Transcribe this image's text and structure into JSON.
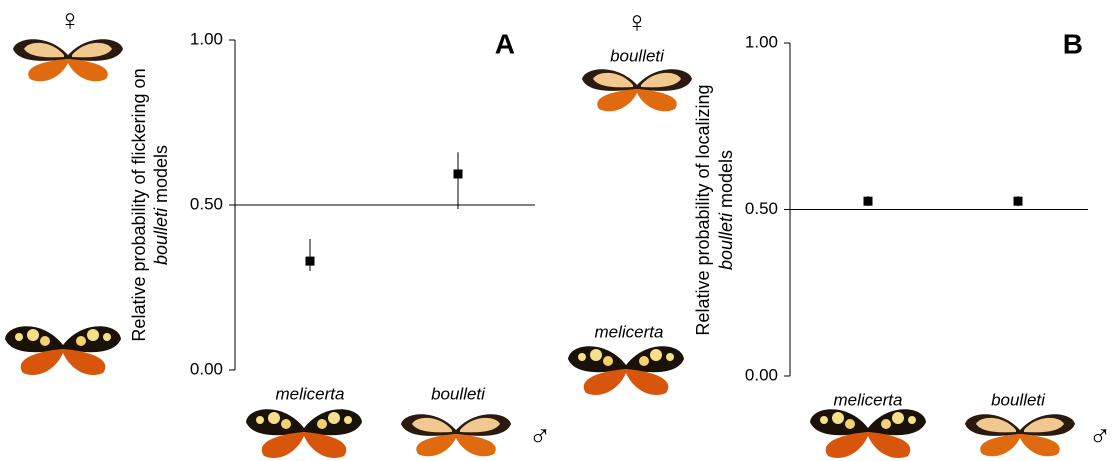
{
  "chart_data": [
    {
      "type": "point",
      "panel": "A",
      "ylabel": [
        [
          {
            "text": "Relative probability of flickering on"
          }
        ],
        [
          {
            "text": "boulleti",
            "italic": true
          },
          {
            "text": "models"
          }
        ]
      ],
      "categories": [
        "melicerta",
        "boulleti"
      ],
      "values": [
        0.33,
        0.594
      ],
      "lower": [
        0.3,
        0.488
      ],
      "upper": [
        0.397,
        0.66
      ],
      "color": "#000000",
      "ylim": [
        0,
        1
      ],
      "yticks": [
        {
          "value": 0,
          "label": "0.00"
        },
        {
          "value": 0.5,
          "label": "0.50"
        },
        {
          "value": 1,
          "label": "1.00"
        }
      ],
      "hline": 0.5,
      "female_symbol": "♀",
      "male_symbol": "♂"
    },
    {
      "type": "point",
      "panel": "B",
      "ylabel": [
        [
          {
            "text": "Relative probability of localizing"
          }
        ],
        [
          {
            "text": "boulleti",
            "italic": true
          },
          {
            "text": "models"
          }
        ]
      ],
      "categories": [
        "melicerta",
        "boulleti"
      ],
      "values": [
        0.525,
        0.525
      ],
      "lower": [
        0.51,
        0.51
      ],
      "upper": [
        0.54,
        0.54
      ],
      "color": "#000000",
      "ylim": [
        0,
        1
      ],
      "yticks": [
        {
          "value": 0,
          "label": "0.00"
        },
        {
          "value": 0.5,
          "label": "0.50"
        },
        {
          "value": 1,
          "label": "1.00"
        }
      ],
      "hline": 0.5,
      "female_symbol": "♀",
      "male_symbol": "♂",
      "female_label": "boulleti",
      "male_label": "melicerta"
    }
  ]
}
